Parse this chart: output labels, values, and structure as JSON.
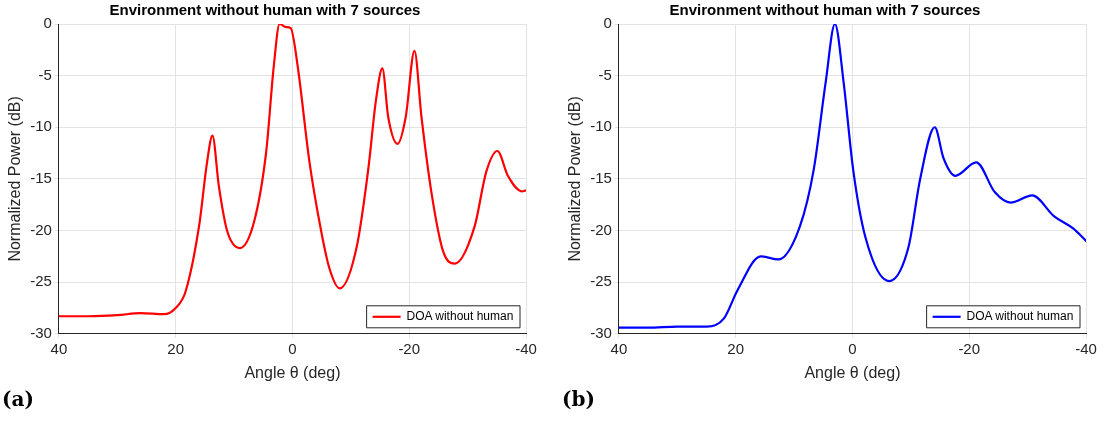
{
  "chart_data": [
    {
      "type": "line",
      "title": "Environment without human with 7 sources",
      "xlabel": "Angle θ (deg)",
      "ylabel": "Normalized Power (dB)",
      "annotations": [
        "(a)"
      ],
      "xlim": [
        40,
        -40
      ],
      "xticks": [
        40,
        20,
        0,
        -20,
        -40
      ],
      "ylim": [
        -30,
        0
      ],
      "yticks": [
        -30,
        -25,
        -20,
        -15,
        -10,
        -5,
        0
      ],
      "grid": true,
      "legend": "bottom right",
      "marker": "none",
      "line_style": "solid",
      "series": [
        {
          "name": "DOA without human",
          "color": "#ff0000",
          "x": [
            40,
            35,
            30,
            26,
            22,
            20,
            18.3,
            16,
            14.6,
            13.7,
            12.6,
            11.2,
            9.0,
            6.5,
            4.5,
            3.2,
            2.2,
            1.1,
            0.3,
            -0.9,
            -2.9,
            -4.9,
            -6.3,
            -8.1,
            -11,
            -13,
            -14.3,
            -15.4,
            -16.4,
            -18.0,
            -19.4,
            -20.9,
            -22.1,
            -23.8,
            -25.8,
            -27.8,
            -31.2,
            -33.2,
            -35.1,
            -36.9,
            -39.3,
            -40
          ],
          "values": [
            -28.3,
            -28.3,
            -28.2,
            -28.0,
            -28.1,
            -27.5,
            -25.9,
            -19.6,
            -13.3,
            -10.8,
            -15.7,
            -20,
            -21.7,
            -19,
            -12.4,
            -4.1,
            0,
            -0.3,
            -0.4,
            -4.1,
            -13.3,
            -20,
            -23.6,
            -25.6,
            -21.6,
            -14,
            -7.4,
            -4.3,
            -9,
            -11.6,
            -9,
            -2.6,
            -9,
            -16.3,
            -22,
            -23.2,
            -19.6,
            -14.3,
            -12.3,
            -14.7,
            -16.2,
            -16.1
          ]
        }
      ]
    },
    {
      "type": "line",
      "title": "Environment without human with 7 sources",
      "xlabel": "Angle θ (deg)",
      "ylabel": "Normalized Power (dB)",
      "annotations": [
        "(b)"
      ],
      "xlim": [
        40,
        -40
      ],
      "xticks": [
        40,
        20,
        0,
        -20,
        -40
      ],
      "ylim": [
        -30,
        0
      ],
      "yticks": [
        -30,
        -25,
        -20,
        -15,
        -10,
        -5,
        0
      ],
      "grid": true,
      "legend": "bottom right",
      "marker": "none",
      "line_style": "solid",
      "series": [
        {
          "name": "DOA without human",
          "color": "#0000ff",
          "x": [
            40,
            35,
            30,
            25,
            22,
            19.7,
            15.7,
            12.7,
            9.0,
            6.6,
            4.6,
            3.0,
            1.5,
            -0.1,
            -2.2,
            -6.3,
            -9.6,
            -11.6,
            -14.1,
            -15.6,
            -17.6,
            -21.2,
            -24.4,
            -27.1,
            -30.8,
            -34.5,
            -37.8,
            -40
          ],
          "values": [
            -29.4,
            -29.4,
            -29.3,
            -29.3,
            -28.5,
            -25.8,
            -22.5,
            -22.8,
            -19.6,
            -14,
            -5.7,
            0,
            -5.7,
            -14,
            -20.6,
            -24.9,
            -21.6,
            -15,
            -10,
            -13,
            -14.7,
            -13.4,
            -16.3,
            -17.3,
            -16.6,
            -18.6,
            -19.8,
            -21
          ]
        }
      ]
    }
  ]
}
